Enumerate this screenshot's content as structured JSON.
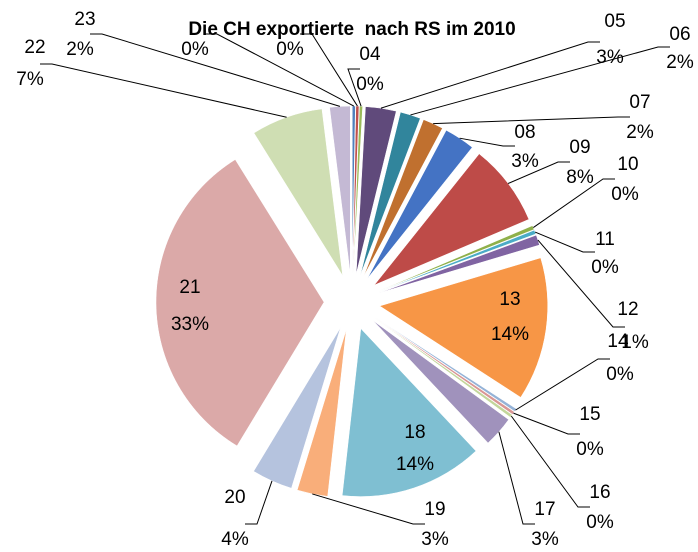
{
  "chart_data": {
    "type": "pie",
    "title": "Die CH exportierte  nach RS im 2010",
    "categories": [
      null,
      null,
      "04",
      "05",
      "06",
      "07",
      "08",
      "09",
      "10",
      "11",
      "12",
      "13",
      "14",
      "15",
      "16",
      "17",
      "18",
      "19",
      "20",
      "21",
      "22",
      "23"
    ],
    "values": [
      0.3,
      0.3,
      0.3,
      3,
      2,
      2,
      3,
      8,
      0.4,
      0.4,
      1,
      14,
      0.3,
      0.3,
      0.3,
      3,
      14,
      3,
      4,
      33,
      7,
      2
    ],
    "value_labels": [
      "0%",
      "0%",
      "0%",
      "3%",
      "2%",
      "2%",
      "3%",
      "8%",
      "0%",
      "0%",
      "1%",
      "14%",
      "0%",
      "0%",
      "0%",
      "3%",
      "14%",
      "3%",
      "4%",
      "33%",
      "7%",
      "2%"
    ],
    "colors": [
      "#4F81BD",
      "#C0504D",
      "#9BBB59",
      "#604A7B",
      "#31859C",
      "#C0702F",
      "#4473C4",
      "#BE4B48",
      "#8FB04A",
      "#4BACC6",
      "#8064A2",
      "#F79646",
      "#95B3D7",
      "#D99694",
      "#C3D69B",
      "#A092BC",
      "#7FBFD2",
      "#F9AE7A",
      "#B5C3DE",
      "#DBA9A8",
      "#CFDEB3",
      "#C4B9D4"
    ]
  }
}
